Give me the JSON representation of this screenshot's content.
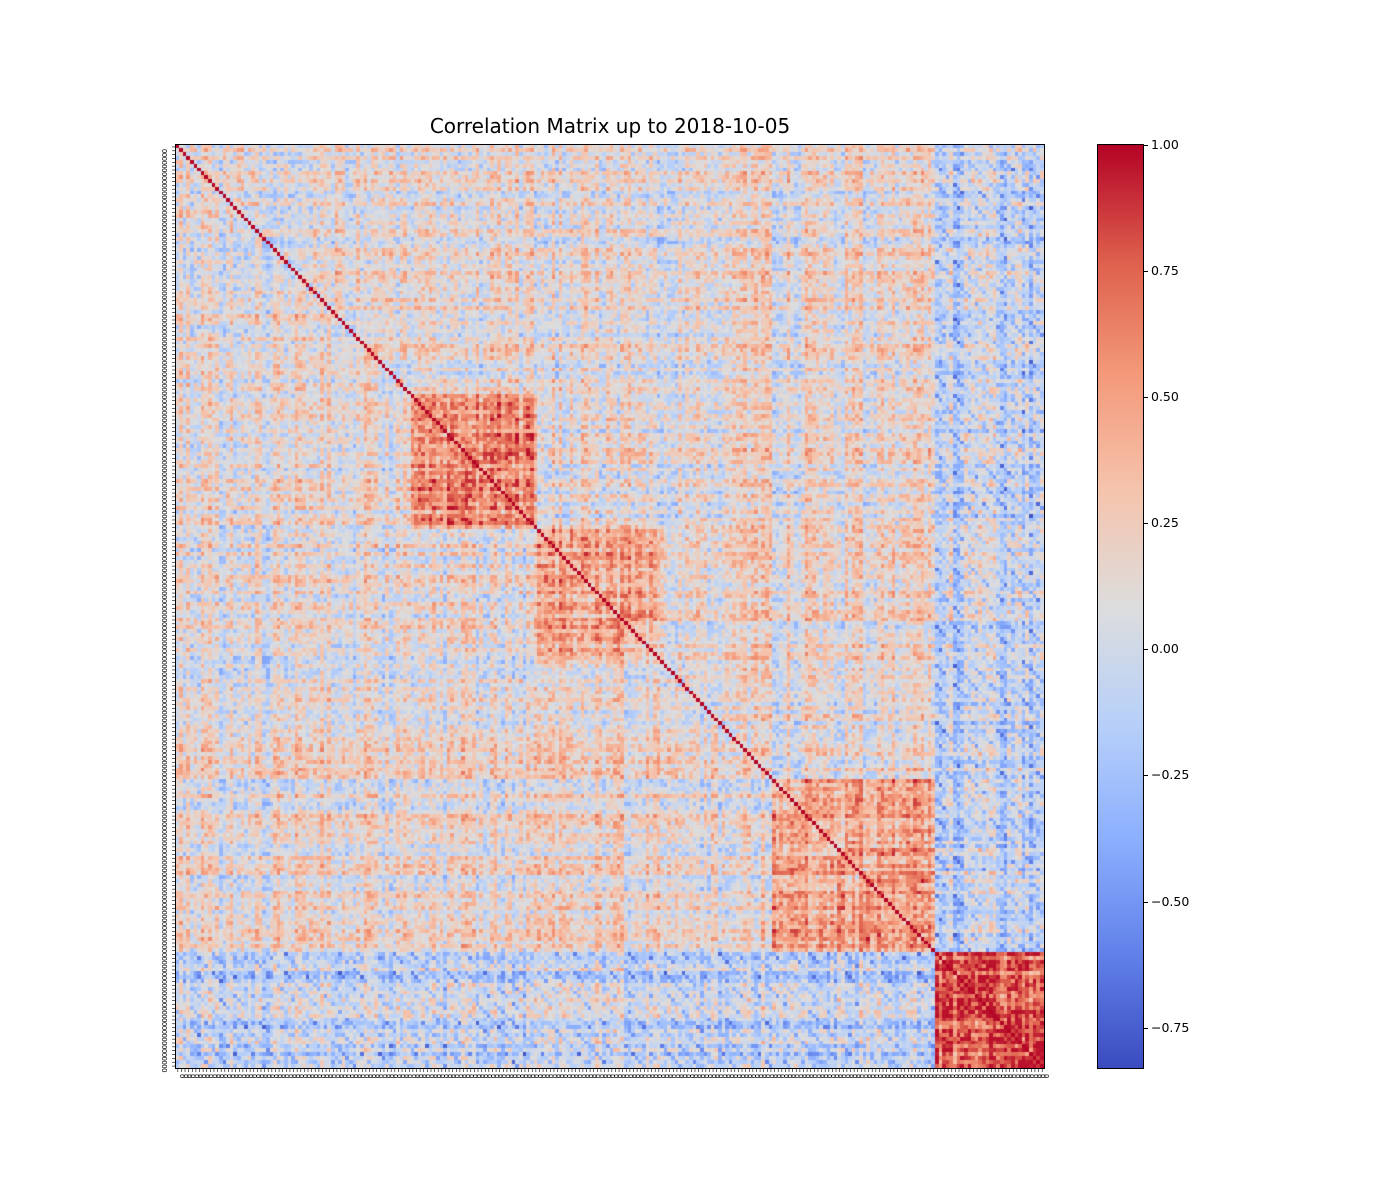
{
  "chart_data": {
    "type": "heatmap",
    "title": "Correlation Matrix up to 2018-10-05",
    "colormap": "coolwarm",
    "matrix_size": 240,
    "vmin": -0.83,
    "vmax": 1.0,
    "diagonal_value": 1.0,
    "colorbar": {
      "ticks": [
        1.0,
        0.75,
        0.5,
        0.25,
        0.0,
        -0.25,
        -0.5,
        -0.75
      ],
      "tick_labels": [
        "1.00",
        "0.75",
        "0.50",
        "0.25",
        "0.00",
        "−0.25",
        "−0.50",
        "−0.75"
      ]
    },
    "tick_label_char": "0",
    "blocks": [
      {
        "start": 65,
        "end": 100,
        "mean_corr": 0.55
      },
      {
        "start": 100,
        "end": 135,
        "mean_corr": 0.4
      },
      {
        "start": 165,
        "end": 210,
        "mean_corr": 0.45
      },
      {
        "start": 210,
        "end": 240,
        "mean_corr": 0.75
      },
      {
        "start": 225,
        "end": 240,
        "mean_corr": 0.9
      }
    ]
  }
}
